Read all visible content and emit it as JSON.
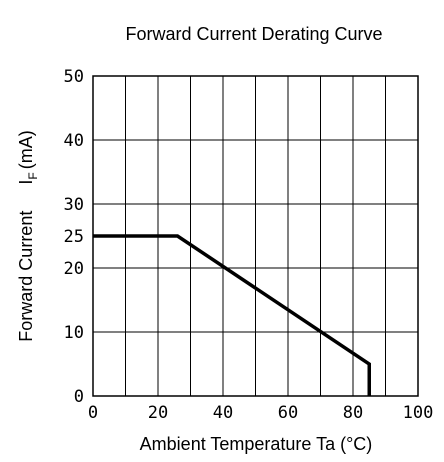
{
  "chart_data": {
    "type": "line",
    "title": "Forward Current Derating Curve",
    "xlabel": "Ambient Temperature Ta (°C)",
    "ylabel_main": "Forward Current",
    "ylabel_symbol": "I",
    "ylabel_subscript": "F",
    "ylabel_unit": "(mA)",
    "xlim": [
      0,
      100
    ],
    "ylim": [
      0,
      50
    ],
    "x_ticks": [
      0,
      10,
      20,
      30,
      40,
      50,
      60,
      70,
      80,
      90,
      100
    ],
    "x_tick_labels": [
      "0",
      "20",
      "40",
      "60",
      "80",
      "100"
    ],
    "x_tick_label_values": [
      0,
      20,
      40,
      60,
      80,
      100
    ],
    "y_ticks": [
      0,
      10,
      20,
      30,
      40,
      50
    ],
    "y_tick_labels": [
      "0",
      "10",
      "20",
      "25",
      "30",
      "40",
      "50"
    ],
    "y_tick_label_values": [
      0,
      10,
      20,
      25,
      30,
      40,
      50
    ],
    "grid": true,
    "series": [
      {
        "x": [
          0,
          26,
          85,
          85
        ],
        "y": [
          25,
          25,
          5,
          0
        ]
      }
    ]
  }
}
